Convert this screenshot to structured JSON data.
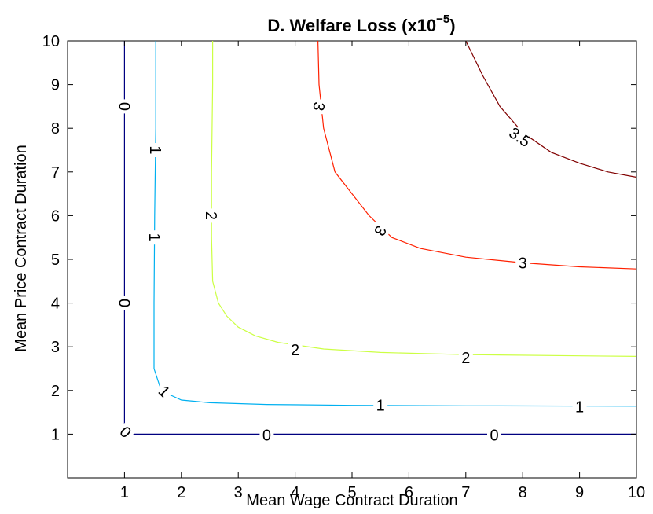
{
  "chart_data": {
    "type": "contour",
    "title_main": "D.  Welfare Loss (x10",
    "title_exp": "−5",
    "title_close": ")",
    "xlabel": "Mean Wage Contract Duration",
    "ylabel": "Mean Price Contract Duration",
    "xlim": [
      0,
      10
    ],
    "ylim": [
      0,
      10
    ],
    "xticks": [
      1,
      2,
      3,
      4,
      5,
      6,
      7,
      8,
      9,
      10
    ],
    "yticks": [
      1,
      2,
      3,
      4,
      5,
      6,
      7,
      8,
      9,
      10
    ],
    "grid": false,
    "levels": [
      {
        "level": 0,
        "color": "#000080",
        "points": [
          [
            1.0,
            10.0
          ],
          [
            1.0,
            1.0
          ],
          [
            10.0,
            1.0
          ]
        ],
        "labels": [
          {
            "text": "0",
            "x": 1.0,
            "y": 8.5,
            "rotate": 90
          },
          {
            "text": "0",
            "x": 1.0,
            "y": 4.0,
            "rotate": 90
          },
          {
            "text": "0",
            "x": 1.02,
            "y": 1.05,
            "rotate": 45
          },
          {
            "text": "0",
            "x": 3.5,
            "y": 0.98,
            "rotate": 0
          },
          {
            "text": "0",
            "x": 7.5,
            "y": 0.98,
            "rotate": 0
          }
        ]
      },
      {
        "level": 1,
        "color": "#00b0f0",
        "points": [
          [
            1.55,
            10.0
          ],
          [
            1.55,
            8.0
          ],
          [
            1.53,
            6.0
          ],
          [
            1.52,
            4.0
          ],
          [
            1.52,
            2.5
          ],
          [
            1.62,
            2.1
          ],
          [
            1.8,
            1.9
          ],
          [
            2.0,
            1.78
          ],
          [
            2.5,
            1.72
          ],
          [
            3.5,
            1.68
          ],
          [
            5.0,
            1.66
          ],
          [
            7.0,
            1.65
          ],
          [
            10.0,
            1.64
          ]
        ],
        "labels": [
          {
            "text": "1",
            "x": 1.55,
            "y": 7.5,
            "rotate": 90
          },
          {
            "text": "1",
            "x": 1.53,
            "y": 5.5,
            "rotate": 90
          },
          {
            "text": "1",
            "x": 1.7,
            "y": 1.98,
            "rotate": 45
          },
          {
            "text": "1",
            "x": 5.5,
            "y": 1.66,
            "rotate": 0
          },
          {
            "text": "1",
            "x": 9.0,
            "y": 1.63,
            "rotate": 0
          }
        ]
      },
      {
        "level": 2,
        "color": "#ccff44",
        "points": [
          [
            2.55,
            10.0
          ],
          [
            2.55,
            9.0
          ],
          [
            2.53,
            7.0
          ],
          [
            2.53,
            5.5
          ],
          [
            2.55,
            4.5
          ],
          [
            2.65,
            4.0
          ],
          [
            2.8,
            3.7
          ],
          [
            3.0,
            3.45
          ],
          [
            3.3,
            3.25
          ],
          [
            3.7,
            3.1
          ],
          [
            4.5,
            2.95
          ],
          [
            5.5,
            2.87
          ],
          [
            7.0,
            2.82
          ],
          [
            10.0,
            2.78
          ]
        ],
        "labels": [
          {
            "text": "2",
            "x": 2.53,
            "y": 6.0,
            "rotate": 90
          },
          {
            "text": "2",
            "x": 4.0,
            "y": 2.93,
            "rotate": 0
          },
          {
            "text": "2",
            "x": 7.0,
            "y": 2.75,
            "rotate": 0
          }
        ]
      },
      {
        "level": 3,
        "color": "#ff2000",
        "points": [
          [
            4.4,
            10.0
          ],
          [
            4.42,
            9.0
          ],
          [
            4.5,
            8.0
          ],
          [
            4.7,
            7.0
          ],
          [
            5.0,
            6.5
          ],
          [
            5.3,
            6.0
          ],
          [
            5.7,
            5.5
          ],
          [
            6.2,
            5.25
          ],
          [
            7.0,
            5.05
          ],
          [
            8.0,
            4.92
          ],
          [
            9.0,
            4.83
          ],
          [
            10.0,
            4.78
          ]
        ],
        "labels": [
          {
            "text": "3",
            "x": 4.42,
            "y": 8.5,
            "rotate": 100
          },
          {
            "text": "3",
            "x": 5.5,
            "y": 5.65,
            "rotate": 120
          },
          {
            "text": "3",
            "x": 8.0,
            "y": 4.92,
            "rotate": 0
          }
        ]
      },
      {
        "level": 3.5,
        "color": "#800000",
        "points": [
          [
            7.0,
            10.0
          ],
          [
            7.3,
            9.2
          ],
          [
            7.6,
            8.5
          ],
          [
            8.0,
            7.9
          ],
          [
            8.5,
            7.45
          ],
          [
            9.0,
            7.2
          ],
          [
            9.5,
            7.0
          ],
          [
            10.0,
            6.88
          ]
        ],
        "labels": [
          {
            "text": "3.5",
            "x": 7.95,
            "y": 7.8,
            "rotate": 35
          }
        ]
      }
    ]
  }
}
